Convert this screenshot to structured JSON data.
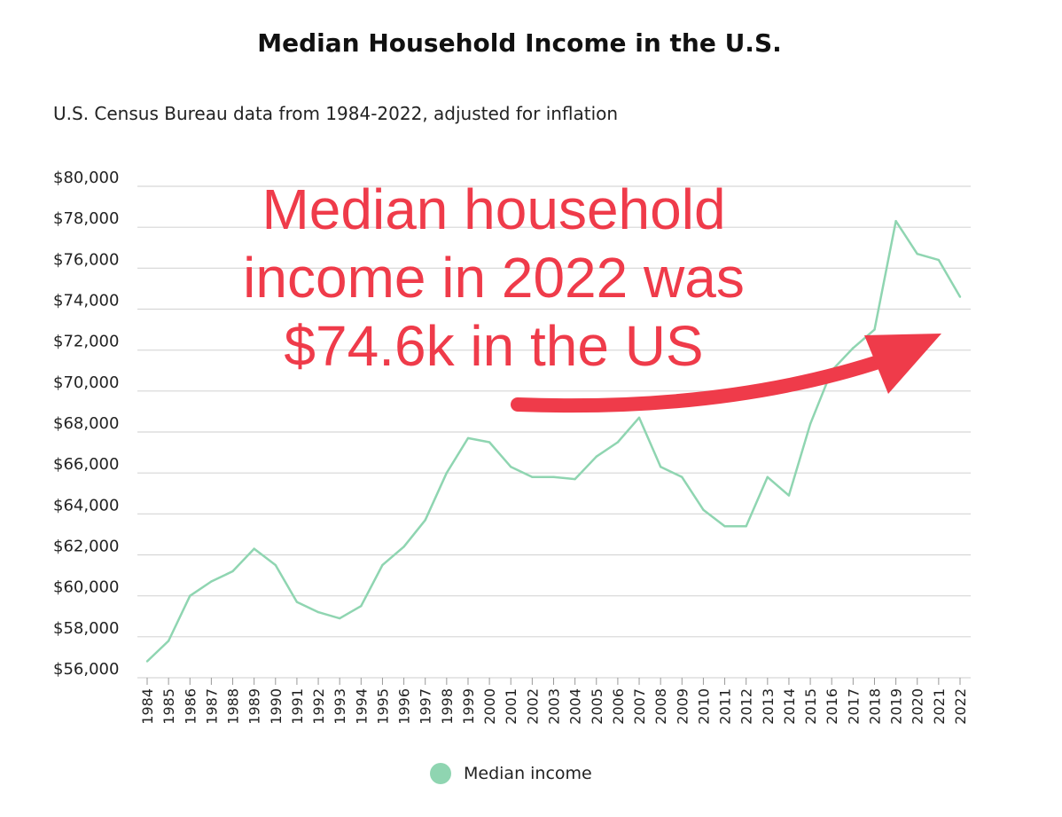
{
  "chart_data": {
    "type": "line",
    "title": "Median Household Income in the U.S.",
    "subtitle": "U.S. Census Bureau data from 1984-2022, adjusted for inflation",
    "ylim": [
      56000,
      80000
    ],
    "y_ticks": [
      {
        "value": 80000,
        "label": "$80,000"
      },
      {
        "value": 78000,
        "label": "$78,000"
      },
      {
        "value": 76000,
        "label": "$76,000"
      },
      {
        "value": 74000,
        "label": "$74,000"
      },
      {
        "value": 72000,
        "label": "$72,000"
      },
      {
        "value": 70000,
        "label": "$70,000"
      },
      {
        "value": 68000,
        "label": "$68,000"
      },
      {
        "value": 66000,
        "label": "$66,000"
      },
      {
        "value": 64000,
        "label": "$64,000"
      },
      {
        "value": 62000,
        "label": "$62,000"
      },
      {
        "value": 60000,
        "label": "$60,000"
      },
      {
        "value": 58000,
        "label": "$58,000"
      },
      {
        "value": 56000,
        "label": "$56,000"
      }
    ],
    "grid": true,
    "legend_position": "bottom-center",
    "categories": [
      "1984",
      "1985",
      "1986",
      "1987",
      "1988",
      "1989",
      "1990",
      "1991",
      "1992",
      "1993",
      "1994",
      "1995",
      "1996",
      "1997",
      "1998",
      "1999",
      "2000",
      "2001",
      "2002",
      "2003",
      "2004",
      "2005",
      "2006",
      "2007",
      "2008",
      "2009",
      "2010",
      "2011",
      "2012",
      "2013",
      "2014",
      "2015",
      "2016",
      "2017",
      "2018",
      "2019",
      "2020",
      "2021",
      "2022"
    ],
    "series": [
      {
        "name": "Median income",
        "color": "#8fd5b1",
        "values": [
          56800,
          57800,
          60000,
          60700,
          61200,
          62300,
          61500,
          59700,
          59200,
          58900,
          59500,
          61500,
          62400,
          63700,
          66000,
          67700,
          67500,
          66300,
          65800,
          65800,
          65700,
          66800,
          67500,
          68700,
          66300,
          65800,
          64200,
          63400,
          63400,
          65800,
          64900,
          68400,
          71000,
          72100,
          73000,
          78300,
          76700,
          76400,
          74600
        ]
      }
    ],
    "annotation": {
      "lines": [
        "Median household",
        "income in 2022 was",
        "$74.6k in the US"
      ],
      "color": "#ef3b4a"
    }
  }
}
